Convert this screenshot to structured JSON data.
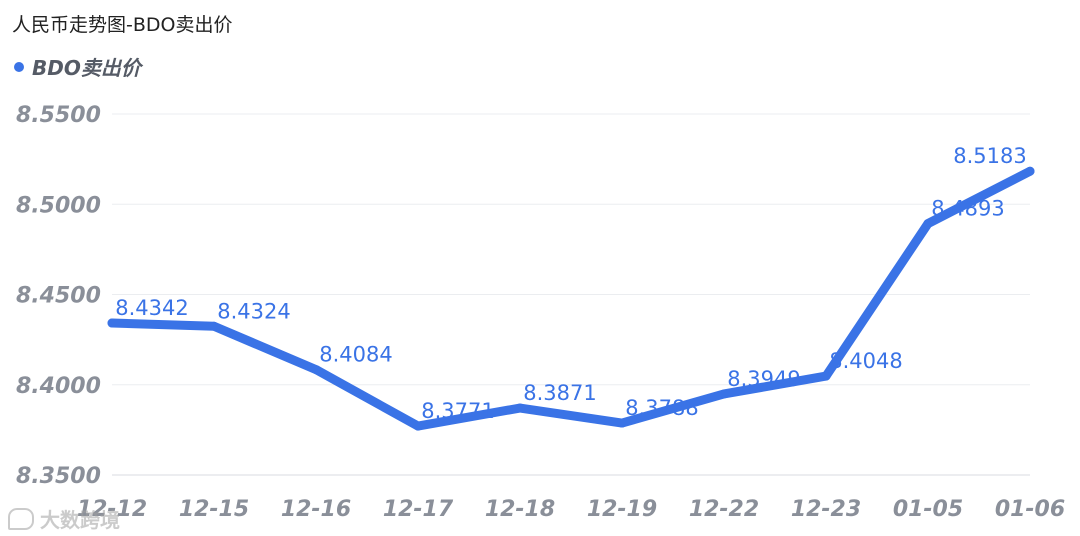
{
  "title": "人民币走势图-BDO卖出价",
  "legend": {
    "label": "BDO卖出价",
    "color": "#3a73e6"
  },
  "watermark": "大数跨境",
  "chart_data": {
    "type": "line",
    "title": "人民币走势图-BDO卖出价",
    "categories": [
      "12-12",
      "12-15",
      "12-16",
      "12-17",
      "12-18",
      "12-19",
      "12-22",
      "12-23",
      "01-05",
      "01-06"
    ],
    "series": [
      {
        "name": "BDO卖出价",
        "color": "#3a73e6",
        "values": [
          8.4342,
          8.4324,
          8.4084,
          8.3771,
          8.3871,
          8.3788,
          8.3949,
          8.4048,
          8.4893,
          8.5183
        ],
        "labels": [
          "8.4342",
          "8.4324",
          "8.4084",
          "8.3771",
          "8.3871",
          "8.3788",
          "8.3949",
          "8.4048",
          "8.4893",
          "8.5183"
        ]
      }
    ],
    "yticks": [
      "8.3500",
      "8.4000",
      "8.4500",
      "8.5000",
      "8.5500"
    ],
    "ylim": [
      8.35,
      8.55
    ],
    "grid": true,
    "legend_position": "top-left"
  }
}
